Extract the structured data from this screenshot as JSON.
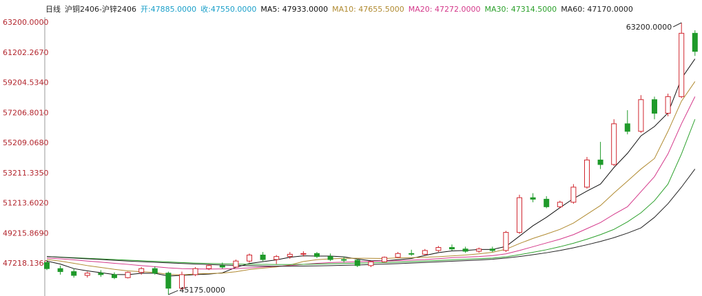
{
  "chart_data": {
    "type": "candlestick",
    "header": [
      {
        "text": "日线",
        "color": "#222222"
      },
      {
        "text": "沪铜2406-沪锌2406",
        "color": "#222222"
      },
      {
        "text": "开:47885.0000",
        "color": "#1a9fc9"
      },
      {
        "text": "收:47550.0000",
        "color": "#1a9fc9"
      }
    ],
    "ylim": [
      45175,
      63200
    ],
    "yticks": [
      {
        "value": 63200,
        "label": "63200.0000"
      },
      {
        "value": 61202.267,
        "label": "61202.2670"
      },
      {
        "value": 59204.534,
        "label": "59204.5340"
      },
      {
        "value": 57206.801,
        "label": "57206.8010"
      },
      {
        "value": 55209.068,
        "label": "55209.0680"
      },
      {
        "value": 53211.335,
        "label": "53211.3350"
      },
      {
        "value": 51213.602,
        "label": "51213.6020"
      },
      {
        "value": 49215.869,
        "label": "49215.8690"
      },
      {
        "value": 47218.136,
        "label": "47218.1360"
      }
    ],
    "grid": false,
    "up_color": "#d0262e",
    "down_color": "#1f9a2a",
    "open": [
      47300,
      46900,
      46700,
      46450,
      46600,
      46500,
      46300,
      46650,
      46900,
      46600,
      45600,
      46500,
      46900,
      47100,
      47000,
      47400,
      47800,
      47500,
      47700,
      47850,
      47900,
      47700,
      47500,
      47450,
      47100,
      47350,
      47650,
      47900,
      47850,
      48100,
      48300,
      48200,
      48050,
      48200,
      48100,
      49300,
      51600,
      51500,
      51000,
      51300,
      52300,
      54100,
      53800,
      56500,
      56000,
      58100,
      57200,
      58300,
      62500
    ],
    "high": [
      47450,
      47100,
      46900,
      46700,
      46800,
      46650,
      46700,
      47000,
      47050,
      46700,
      46700,
      47000,
      47200,
      47300,
      47500,
      47900,
      48000,
      47800,
      48000,
      48050,
      48000,
      47900,
      47700,
      47550,
      47400,
      47700,
      48000,
      48150,
      48200,
      48400,
      48500,
      48350,
      48300,
      48350,
      49400,
      51800,
      51900,
      51700,
      51400,
      52500,
      54300,
      55300,
      56800,
      57400,
      58400,
      58300,
      58500,
      63200,
      62700
    ],
    "low": [
      46800,
      46500,
      46300,
      46300,
      46350,
      46200,
      46250,
      46500,
      46500,
      45175,
      45500,
      46400,
      46800,
      46900,
      46950,
      47300,
      47400,
      47200,
      47550,
      47700,
      47600,
      47400,
      47300,
      47000,
      47000,
      47300,
      47600,
      47750,
      47800,
      48000,
      48100,
      47950,
      47950,
      48000,
      48000,
      49200,
      51300,
      50900,
      50900,
      51200,
      52200,
      53500,
      53700,
      55800,
      55900,
      56800,
      57000,
      58200,
      61000
    ],
    "close": [
      46900,
      46700,
      46450,
      46600,
      46500,
      46300,
      46650,
      46900,
      46600,
      45600,
      46500,
      46900,
      47100,
      47000,
      47400,
      47800,
      47500,
      47700,
      47850,
      47900,
      47700,
      47500,
      47450,
      47100,
      47350,
      47650,
      47900,
      47850,
      48100,
      48300,
      48200,
      48050,
      48200,
      48100,
      49300,
      51600,
      51500,
      51000,
      51300,
      52300,
      54100,
      53800,
      56500,
      56000,
      58100,
      57200,
      58300,
      62500,
      61300
    ],
    "series": [
      {
        "name": "MA5: 47933.0000",
        "color": "#111111",
        "values": [
          47400,
          47200,
          46900,
          46750,
          46630,
          46510,
          46500,
          46590,
          46590,
          46410,
          46450,
          46500,
          46540,
          46620,
          46980,
          47240,
          47360,
          47480,
          47650,
          47750,
          47730,
          47730,
          47680,
          47530,
          47420,
          47410,
          47490,
          47570,
          47770,
          47960,
          48070,
          48100,
          48170,
          48170,
          48370,
          49050,
          49740,
          50300,
          50940,
          51540,
          52040,
          52500,
          53600,
          54540,
          55700,
          56320,
          57220,
          59500,
          60800
        ]
      },
      {
        "name": "MA10: 47655.5000",
        "color": "#b08a30",
        "values": [
          47500,
          47400,
          47250,
          47100,
          46980,
          46850,
          46750,
          46700,
          46640,
          46520,
          46480,
          46550,
          46570,
          46600,
          46690,
          46840,
          46930,
          47010,
          47140,
          47370,
          47490,
          47550,
          47580,
          47590,
          47580,
          47570,
          47610,
          47620,
          47650,
          47690,
          47740,
          47800,
          47880,
          47980,
          48180,
          48560,
          48900,
          49190,
          49500,
          49920,
          50500,
          51080,
          51910,
          52700,
          53500,
          54200,
          56000,
          58000,
          59300
        ]
      },
      {
        "name": "MA20: 47272.0000",
        "color": "#d4388a",
        "values": [
          47600,
          47550,
          47480,
          47400,
          47330,
          47250,
          47180,
          47100,
          47030,
          46950,
          46900,
          46880,
          46870,
          46880,
          46900,
          46950,
          47000,
          47050,
          47100,
          47180,
          47250,
          47300,
          47330,
          47360,
          47380,
          47400,
          47430,
          47460,
          47500,
          47560,
          47620,
          47660,
          47700,
          47760,
          47880,
          48100,
          48350,
          48600,
          48850,
          49150,
          49550,
          49950,
          50500,
          51000,
          52000,
          53000,
          54500,
          56500,
          58300
        ]
      },
      {
        "name": "MA30: 47314.5000",
        "color": "#2ba02b",
        "values": [
          47700,
          47660,
          47620,
          47580,
          47540,
          47500,
          47460,
          47420,
          47380,
          47340,
          47300,
          47270,
          47240,
          47220,
          47200,
          47190,
          47180,
          47170,
          47170,
          47180,
          47200,
          47220,
          47240,
          47260,
          47280,
          47300,
          47330,
          47360,
          47400,
          47440,
          47480,
          47520,
          47560,
          47600,
          47680,
          47820,
          47980,
          48150,
          48350,
          48580,
          48850,
          49150,
          49500,
          50000,
          50600,
          51400,
          52500,
          54500,
          56800
        ]
      },
      {
        "name": "MA60: 47170.0000",
        "color": "#222222",
        "values": [
          47700,
          47650,
          47600,
          47550,
          47500,
          47450,
          47400,
          47360,
          47320,
          47280,
          47240,
          47200,
          47170,
          47140,
          47110,
          47090,
          47070,
          47060,
          47060,
          47070,
          47080,
          47100,
          47120,
          47140,
          47170,
          47200,
          47230,
          47270,
          47310,
          47350,
          47390,
          47430,
          47470,
          47520,
          47600,
          47700,
          47820,
          47950,
          48100,
          48280,
          48480,
          48700,
          48950,
          49250,
          49600,
          50300,
          51200,
          52300,
          53500
        ]
      }
    ],
    "annotations": {
      "max": "63200.0000",
      "min": "45175.0000"
    },
    "axis_label_color": "#b3262e"
  }
}
